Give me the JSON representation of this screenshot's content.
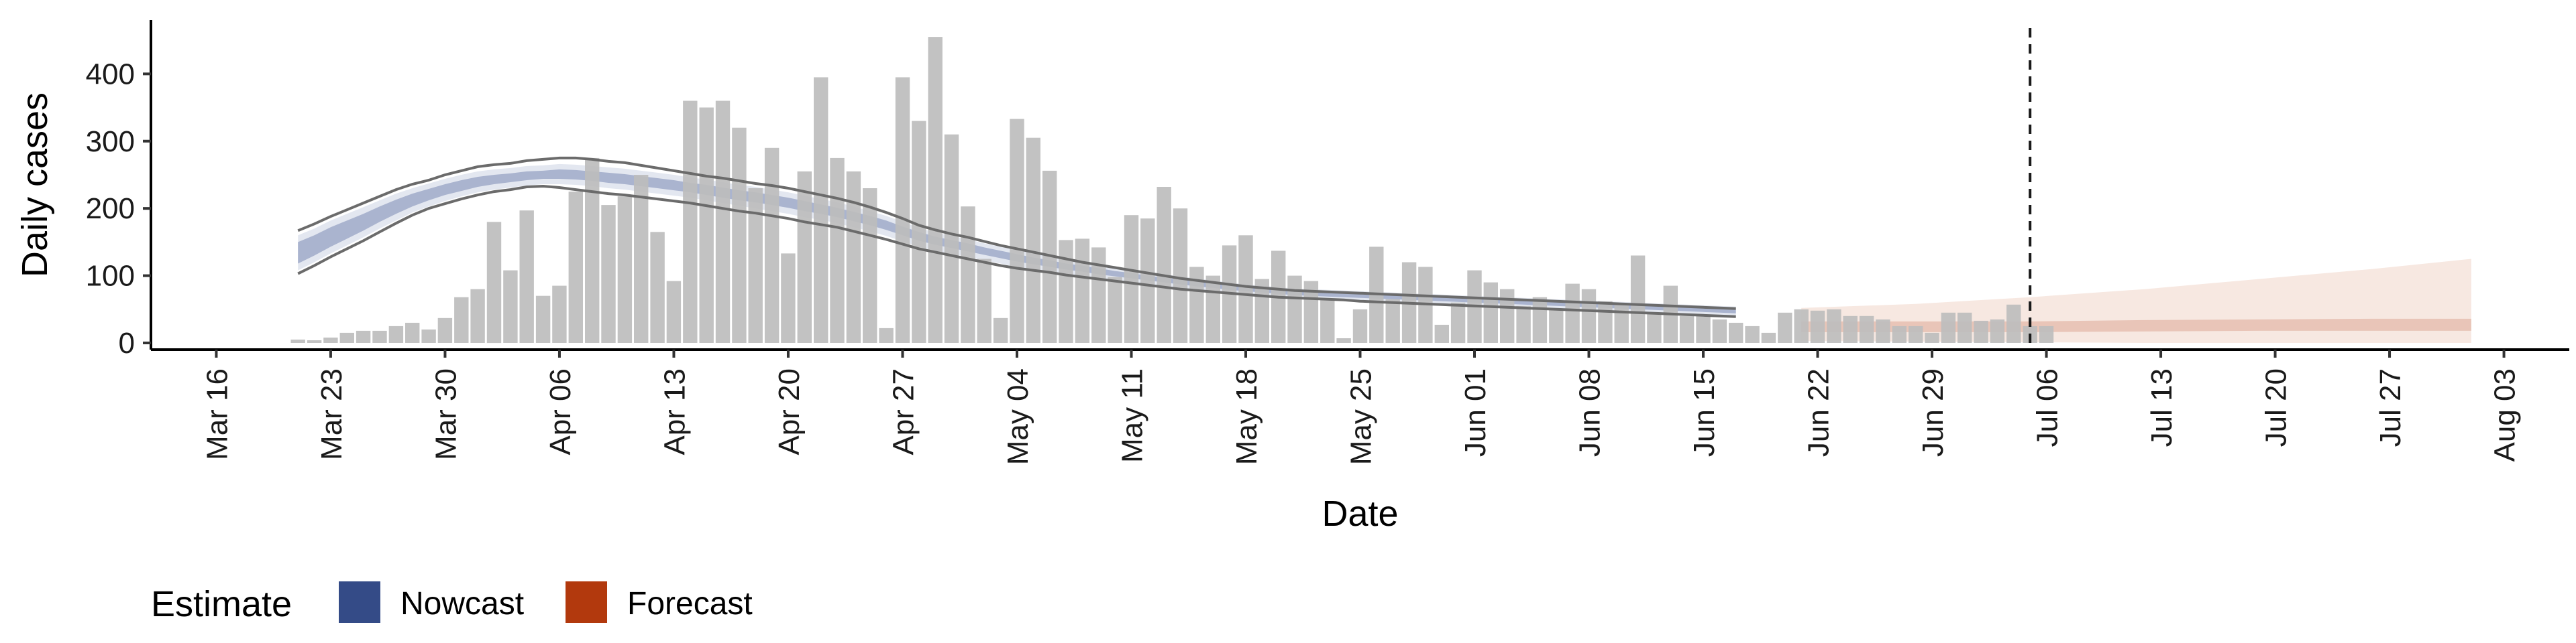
{
  "chart_data": {
    "type": "bar",
    "xlabel": "Date",
    "ylabel": "Daily cases",
    "ylim": [
      0,
      480
    ],
    "xlim": [
      "2020-03-12",
      "2020-08-07"
    ],
    "yticks": [
      0,
      100,
      200,
      300,
      400
    ],
    "xticks": [
      {
        "date": "2020-03-16",
        "label": "Mar 16"
      },
      {
        "date": "2020-03-23",
        "label": "Mar 23"
      },
      {
        "date": "2020-03-30",
        "label": "Mar 30"
      },
      {
        "date": "2020-04-06",
        "label": "Apr 06"
      },
      {
        "date": "2020-04-13",
        "label": "Apr 13"
      },
      {
        "date": "2020-04-20",
        "label": "Apr 20"
      },
      {
        "date": "2020-04-27",
        "label": "Apr 27"
      },
      {
        "date": "2020-05-04",
        "label": "May 04"
      },
      {
        "date": "2020-05-11",
        "label": "May 11"
      },
      {
        "date": "2020-05-18",
        "label": "May 18"
      },
      {
        "date": "2020-05-25",
        "label": "May 25"
      },
      {
        "date": "2020-06-01",
        "label": "Jun 01"
      },
      {
        "date": "2020-06-08",
        "label": "Jun 08"
      },
      {
        "date": "2020-06-15",
        "label": "Jun 15"
      },
      {
        "date": "2020-06-22",
        "label": "Jun 22"
      },
      {
        "date": "2020-06-29",
        "label": "Jun 29"
      },
      {
        "date": "2020-07-06",
        "label": "Jul 06"
      },
      {
        "date": "2020-07-13",
        "label": "Jul 13"
      },
      {
        "date": "2020-07-20",
        "label": "Jul 20"
      },
      {
        "date": "2020-07-27",
        "label": "Jul 27"
      },
      {
        "date": "2020-08-03",
        "label": "Aug 03"
      }
    ],
    "bars": {
      "start_date": "2020-03-21",
      "values": [
        5,
        4,
        8,
        15,
        18,
        18,
        25,
        30,
        20,
        37,
        68,
        80,
        180,
        108,
        197,
        70,
        85,
        225,
        275,
        205,
        218,
        250,
        165,
        92,
        360,
        350,
        360,
        320,
        230,
        290,
        133,
        255,
        395,
        275,
        255,
        230,
        22,
        395,
        330,
        455,
        310,
        203,
        125,
        37,
        333,
        305,
        256,
        153,
        155,
        142,
        98,
        190,
        185,
        232,
        200,
        113,
        100,
        145,
        160,
        95,
        137,
        100,
        92,
        65,
        7,
        50,
        143,
        65,
        120,
        113,
        27,
        60,
        108,
        90,
        80,
        55,
        68,
        50,
        88,
        80,
        62,
        57,
        130,
        45,
        85,
        40,
        40,
        35,
        30,
        25,
        15,
        45,
        50,
        48,
        50,
        40,
        40,
        35,
        25,
        25,
        15,
        45,
        45,
        33,
        35,
        57,
        25,
        25
      ]
    },
    "interval_outer": {
      "start_date": "2020-03-21",
      "lower": [
        103,
        115,
        128,
        140,
        152,
        165,
        178,
        190,
        200,
        207,
        214,
        220,
        225,
        228,
        232,
        233,
        231,
        228,
        225,
        222,
        220,
        217,
        214,
        211,
        208,
        204,
        200,
        196,
        193,
        189,
        185,
        180,
        176,
        172,
        166,
        160,
        154,
        147,
        140,
        135,
        130,
        125,
        120,
        115,
        111,
        108,
        105,
        101,
        98,
        95,
        92,
        89,
        86,
        83,
        80,
        78,
        76,
        74,
        72,
        70,
        68,
        67,
        66,
        65,
        64,
        62,
        61,
        60,
        59,
        58,
        57,
        56,
        55,
        54,
        53,
        52,
        51,
        50,
        49,
        48,
        47,
        46,
        45,
        44,
        43,
        42,
        41,
        40,
        39
      ],
      "upper": [
        167,
        177,
        188,
        198,
        208,
        218,
        228,
        236,
        242,
        250,
        256,
        262,
        265,
        267,
        271,
        273,
        275,
        275,
        273,
        270,
        268,
        264,
        260,
        256,
        252,
        248,
        245,
        241,
        237,
        234,
        230,
        225,
        220,
        215,
        209,
        202,
        194,
        185,
        175,
        168,
        162,
        157,
        151,
        145,
        140,
        135,
        130,
        125,
        120,
        116,
        112,
        108,
        104,
        100,
        96,
        93,
        90,
        87,
        84,
        82,
        80,
        78,
        77,
        76,
        75,
        74,
        73,
        72,
        71,
        70,
        69,
        68,
        67,
        66,
        65,
        64,
        63,
        62,
        61,
        60,
        59,
        58,
        57,
        56,
        55,
        54,
        53,
        52,
        51
      ]
    },
    "estimate_band": {
      "start_date": "2020-03-21",
      "mid_lower": [
        118,
        130,
        143,
        155,
        167,
        180,
        192,
        203,
        212,
        220,
        226,
        232,
        236,
        239,
        242,
        244,
        244,
        243,
        241,
        238,
        236,
        233,
        230,
        227,
        224,
        220,
        216,
        212,
        209,
        205,
        201,
        196,
        192,
        187,
        181,
        175,
        168,
        160,
        152,
        146,
        141,
        136,
        131,
        126,
        121,
        117,
        113,
        109,
        106,
        102,
        99,
        96,
        93,
        90,
        87,
        84,
        82,
        79,
        77,
        75,
        73,
        71,
        70,
        69,
        68,
        67,
        66,
        65,
        64,
        63,
        62,
        61,
        60,
        59,
        58,
        57,
        56,
        55,
        54,
        53,
        52,
        51,
        50,
        49,
        48,
        47,
        46,
        45,
        44
      ],
      "mid_upper": [
        150,
        160,
        172,
        182,
        192,
        203,
        213,
        222,
        229,
        236,
        242,
        247,
        250,
        252,
        255,
        256,
        258,
        257,
        255,
        253,
        251,
        248,
        245,
        242,
        238,
        235,
        231,
        227,
        224,
        220,
        216,
        211,
        206,
        201,
        195,
        189,
        182,
        173,
        165,
        158,
        153,
        148,
        142,
        137,
        132,
        127,
        123,
        118,
        115,
        111,
        107,
        104,
        100,
        97,
        94,
        91,
        88,
        86,
        83,
        81,
        79,
        77,
        76,
        75,
        74,
        73,
        72,
        71,
        70,
        69,
        68,
        67,
        66,
        65,
        64,
        63,
        62,
        61,
        60,
        59,
        58,
        57,
        56,
        55,
        54,
        53,
        52,
        51,
        50
      ],
      "outer_lower": [
        108,
        120,
        133,
        145,
        157,
        170,
        182,
        194,
        203,
        211,
        218,
        224,
        228,
        231,
        234,
        236,
        236,
        235,
        233,
        230,
        228,
        225,
        222,
        219,
        216,
        212,
        208,
        204,
        200,
        196,
        192,
        187,
        183,
        178,
        172,
        166,
        159,
        151,
        143,
        137,
        132,
        128,
        123,
        118,
        113,
        109,
        106,
        102,
        99,
        95,
        92,
        89,
        86,
        83,
        80,
        78,
        76,
        73,
        71,
        69,
        67,
        66,
        65,
        64,
        63,
        62,
        61,
        60,
        59,
        58,
        57,
        56,
        55,
        54,
        53,
        52,
        51,
        50,
        49,
        48,
        47,
        46,
        45,
        44,
        43,
        42,
        41,
        40,
        39
      ],
      "outer_upper": [
        160,
        170,
        182,
        192,
        202,
        212,
        222,
        230,
        237,
        244,
        250,
        255,
        258,
        260,
        263,
        264,
        266,
        265,
        263,
        261,
        259,
        256,
        253,
        250,
        246,
        243,
        239,
        235,
        232,
        228,
        224,
        219,
        214,
        209,
        203,
        196,
        189,
        180,
        171,
        164,
        159,
        154,
        148,
        143,
        138,
        133,
        129,
        124,
        120,
        116,
        112,
        109,
        105,
        102,
        99,
        96,
        93,
        90,
        87,
        85,
        83,
        81,
        80,
        79,
        78,
        77,
        76,
        75,
        74,
        73,
        72,
        71,
        70,
        69,
        68,
        67,
        66,
        65,
        64,
        63,
        62,
        61,
        60,
        59,
        58,
        57,
        56,
        55,
        54
      ]
    },
    "forecast_band": {
      "dates": [
        "2020-06-21",
        "2020-06-28",
        "2020-07-05",
        "2020-07-12",
        "2020-07-19",
        "2020-07-26",
        "2020-08-01"
      ],
      "mid_lower": [
        16,
        16,
        16,
        17,
        18,
        18,
        18
      ],
      "mid_upper": [
        32,
        32,
        32,
        34,
        35,
        36,
        36
      ],
      "outer_lower": [
        3,
        2,
        1,
        0,
        0,
        0,
        0
      ],
      "outer_upper": [
        52,
        58,
        68,
        80,
        95,
        110,
        125
      ]
    },
    "vline": {
      "date": "2020-07-05",
      "style": "dashed"
    },
    "legend": {
      "title": "Estimate",
      "position": "bottom-left",
      "items": [
        {
          "label": "Nowcast",
          "color": "#344b87"
        },
        {
          "label": "Forecast",
          "color": "#b2390d"
        }
      ]
    },
    "colors": {
      "bar": "#bdbdbd",
      "nowcast_inner": "#aab4cf",
      "nowcast_outer": "#e3e7f0",
      "forecast_inner": "#e9c5b8",
      "forecast_outer": "#f7e8e1",
      "interval_line": "#6b6b6b",
      "axis": "#000000"
    },
    "grid": false
  }
}
